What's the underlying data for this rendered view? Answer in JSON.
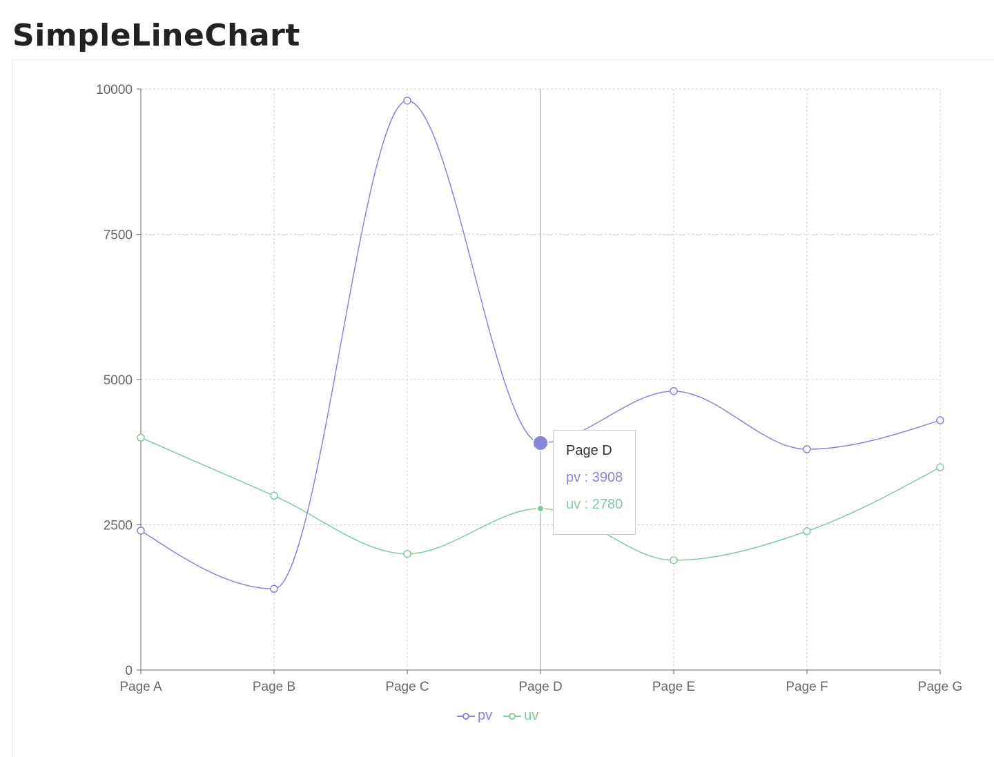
{
  "title": "SimpleLineChart",
  "chart_data": {
    "type": "line",
    "categories": [
      "Page A",
      "Page B",
      "Page C",
      "Page D",
      "Page E",
      "Page F",
      "Page G"
    ],
    "series": [
      {
        "name": "pv",
        "color": "#8884d8",
        "values": [
          2400,
          1398,
          9800,
          3908,
          4800,
          3800,
          4300
        ]
      },
      {
        "name": "uv",
        "color": "#82ca9d",
        "values": [
          4000,
          3000,
          2000,
          2780,
          1890,
          2390,
          3490
        ]
      }
    ],
    "yticks": [
      "0",
      "2500",
      "5000",
      "7500",
      "10000"
    ],
    "ylim": [
      0,
      10000
    ],
    "grid": true,
    "legend": "bottom-center",
    "active_index": 3
  },
  "tooltip": {
    "label": "Page D",
    "pv": "pv : 3908",
    "uv": "uv : 2780"
  },
  "legend": {
    "pv": "pv",
    "uv": "uv"
  }
}
